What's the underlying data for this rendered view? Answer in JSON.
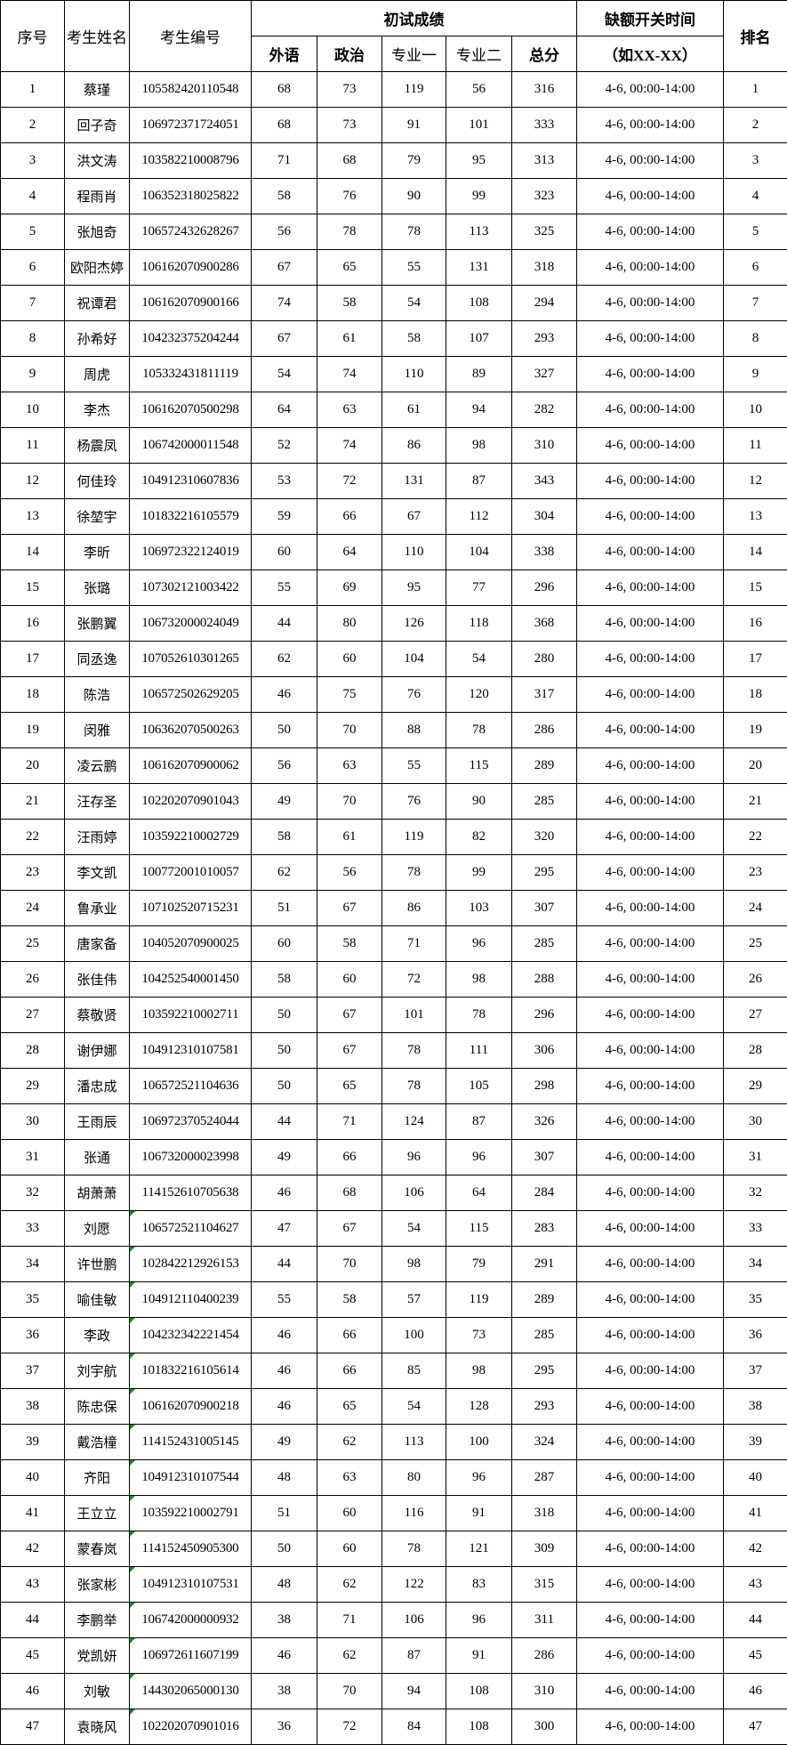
{
  "header": {
    "seq": "序号",
    "name": "考生姓名",
    "id": "考生编号",
    "scores_group": "初试成绩",
    "time_group": "缺额开关时间",
    "time_hint": "（如XX-XX）",
    "rank": "排名",
    "foreign": "外语",
    "politics": "政治",
    "major1": "专业一",
    "major2": "专业二",
    "total": "总分"
  },
  "flag_color": "#1a8a2a",
  "rows": [
    {
      "seq": "1",
      "name": "蔡瑾",
      "id": "105582420110548",
      "foreign": "68",
      "politics": "73",
      "major1": "119",
      "major2": "56",
      "total": "316",
      "time": "4-6, 00:00-14:00",
      "rank": "1",
      "flag": false
    },
    {
      "seq": "2",
      "name": "回子奇",
      "id": "106972371724051",
      "foreign": "68",
      "politics": "73",
      "major1": "91",
      "major2": "101",
      "total": "333",
      "time": "4-6, 00:00-14:00",
      "rank": "2",
      "flag": false
    },
    {
      "seq": "3",
      "name": "洪文涛",
      "id": "103582210008796",
      "foreign": "71",
      "politics": "68",
      "major1": "79",
      "major2": "95",
      "total": "313",
      "time": "4-6, 00:00-14:00",
      "rank": "3",
      "flag": false
    },
    {
      "seq": "4",
      "name": "程雨肖",
      "id": "106352318025822",
      "foreign": "58",
      "politics": "76",
      "major1": "90",
      "major2": "99",
      "total": "323",
      "time": "4-6, 00:00-14:00",
      "rank": "4",
      "flag": false
    },
    {
      "seq": "5",
      "name": "张旭奇",
      "id": "106572432628267",
      "foreign": "56",
      "politics": "78",
      "major1": "78",
      "major2": "113",
      "total": "325",
      "time": "4-6, 00:00-14:00",
      "rank": "5",
      "flag": false
    },
    {
      "seq": "6",
      "name": "欧阳杰婷",
      "id": "106162070900286",
      "foreign": "67",
      "politics": "65",
      "major1": "55",
      "major2": "131",
      "total": "318",
      "time": "4-6, 00:00-14:00",
      "rank": "6",
      "flag": false
    },
    {
      "seq": "7",
      "name": "祝谭君",
      "id": "106162070900166",
      "foreign": "74",
      "politics": "58",
      "major1": "54",
      "major2": "108",
      "total": "294",
      "time": "4-6, 00:00-14:00",
      "rank": "7",
      "flag": false
    },
    {
      "seq": "8",
      "name": "孙希好",
      "id": "104232375204244",
      "foreign": "67",
      "politics": "61",
      "major1": "58",
      "major2": "107",
      "total": "293",
      "time": "4-6, 00:00-14:00",
      "rank": "8",
      "flag": false
    },
    {
      "seq": "9",
      "name": "周虎",
      "id": "105332431811119",
      "foreign": "54",
      "politics": "74",
      "major1": "110",
      "major2": "89",
      "total": "327",
      "time": "4-6, 00:00-14:00",
      "rank": "9",
      "flag": false
    },
    {
      "seq": "10",
      "name": "李杰",
      "id": "106162070500298",
      "foreign": "64",
      "politics": "63",
      "major1": "61",
      "major2": "94",
      "total": "282",
      "time": "4-6, 00:00-14:00",
      "rank": "10",
      "flag": false
    },
    {
      "seq": "11",
      "name": "杨震凤",
      "id": "106742000011548",
      "foreign": "52",
      "politics": "74",
      "major1": "86",
      "major2": "98",
      "total": "310",
      "time": "4-6, 00:00-14:00",
      "rank": "11",
      "flag": false
    },
    {
      "seq": "12",
      "name": "何佳玲",
      "id": "104912310607836",
      "foreign": "53",
      "politics": "72",
      "major1": "131",
      "major2": "87",
      "total": "343",
      "time": "4-6, 00:00-14:00",
      "rank": "12",
      "flag": false
    },
    {
      "seq": "13",
      "name": "徐堃宇",
      "id": "101832216105579",
      "foreign": "59",
      "politics": "66",
      "major1": "67",
      "major2": "112",
      "total": "304",
      "time": "4-6, 00:00-14:00",
      "rank": "13",
      "flag": false
    },
    {
      "seq": "14",
      "name": "李昕",
      "id": "106972322124019",
      "foreign": "60",
      "politics": "64",
      "major1": "110",
      "major2": "104",
      "total": "338",
      "time": "4-6, 00:00-14:00",
      "rank": "14",
      "flag": false
    },
    {
      "seq": "15",
      "name": "张璐",
      "id": "107302121003422",
      "foreign": "55",
      "politics": "69",
      "major1": "95",
      "major2": "77",
      "total": "296",
      "time": "4-6, 00:00-14:00",
      "rank": "15",
      "flag": false
    },
    {
      "seq": "16",
      "name": "张鹏翼",
      "id": "106732000024049",
      "foreign": "44",
      "politics": "80",
      "major1": "126",
      "major2": "118",
      "total": "368",
      "time": "4-6, 00:00-14:00",
      "rank": "16",
      "flag": false
    },
    {
      "seq": "17",
      "name": "同丞逸",
      "id": "107052610301265",
      "foreign": "62",
      "politics": "60",
      "major1": "104",
      "major2": "54",
      "total": "280",
      "time": "4-6, 00:00-14:00",
      "rank": "17",
      "flag": false
    },
    {
      "seq": "18",
      "name": "陈浩",
      "id": "106572502629205",
      "foreign": "46",
      "politics": "75",
      "major1": "76",
      "major2": "120",
      "total": "317",
      "time": "4-6, 00:00-14:00",
      "rank": "18",
      "flag": false
    },
    {
      "seq": "19",
      "name": "闵雅",
      "id": "106362070500263",
      "foreign": "50",
      "politics": "70",
      "major1": "88",
      "major2": "78",
      "total": "286",
      "time": "4-6, 00:00-14:00",
      "rank": "19",
      "flag": false
    },
    {
      "seq": "20",
      "name": "凌云鹏",
      "id": "106162070900062",
      "foreign": "56",
      "politics": "63",
      "major1": "55",
      "major2": "115",
      "total": "289",
      "time": "4-6, 00:00-14:00",
      "rank": "20",
      "flag": false
    },
    {
      "seq": "21",
      "name": "汪存圣",
      "id": "102202070901043",
      "foreign": "49",
      "politics": "70",
      "major1": "76",
      "major2": "90",
      "total": "285",
      "time": "4-6, 00:00-14:00",
      "rank": "21",
      "flag": false
    },
    {
      "seq": "22",
      "name": "汪雨婷",
      "id": "103592210002729",
      "foreign": "58",
      "politics": "61",
      "major1": "119",
      "major2": "82",
      "total": "320",
      "time": "4-6, 00:00-14:00",
      "rank": "22",
      "flag": false
    },
    {
      "seq": "23",
      "name": "李文凯",
      "id": "100772001010057",
      "foreign": "62",
      "politics": "56",
      "major1": "78",
      "major2": "99",
      "total": "295",
      "time": "4-6, 00:00-14:00",
      "rank": "23",
      "flag": false
    },
    {
      "seq": "24",
      "name": "鲁承业",
      "id": "107102520715231",
      "foreign": "51",
      "politics": "67",
      "major1": "86",
      "major2": "103",
      "total": "307",
      "time": "4-6, 00:00-14:00",
      "rank": "24",
      "flag": false
    },
    {
      "seq": "25",
      "name": "唐家备",
      "id": "104052070900025",
      "foreign": "60",
      "politics": "58",
      "major1": "71",
      "major2": "96",
      "total": "285",
      "time": "4-6, 00:00-14:00",
      "rank": "25",
      "flag": false
    },
    {
      "seq": "26",
      "name": "张佳伟",
      "id": "104252540001450",
      "foreign": "58",
      "politics": "60",
      "major1": "72",
      "major2": "98",
      "total": "288",
      "time": "4-6, 00:00-14:00",
      "rank": "26",
      "flag": false
    },
    {
      "seq": "27",
      "name": "蔡敬贤",
      "id": "103592210002711",
      "foreign": "50",
      "politics": "67",
      "major1": "101",
      "major2": "78",
      "total": "296",
      "time": "4-6, 00:00-14:00",
      "rank": "27",
      "flag": false
    },
    {
      "seq": "28",
      "name": "谢伊娜",
      "id": "104912310107581",
      "foreign": "50",
      "politics": "67",
      "major1": "78",
      "major2": "111",
      "total": "306",
      "time": "4-6, 00:00-14:00",
      "rank": "28",
      "flag": false
    },
    {
      "seq": "29",
      "name": "潘忠成",
      "id": "106572521104636",
      "foreign": "50",
      "politics": "65",
      "major1": "78",
      "major2": "105",
      "total": "298",
      "time": "4-6, 00:00-14:00",
      "rank": "29",
      "flag": false
    },
    {
      "seq": "30",
      "name": "王雨辰",
      "id": "106972370524044",
      "foreign": "44",
      "politics": "71",
      "major1": "124",
      "major2": "87",
      "total": "326",
      "time": "4-6, 00:00-14:00",
      "rank": "30",
      "flag": false
    },
    {
      "seq": "31",
      "name": "张通",
      "id": "106732000023998",
      "foreign": "49",
      "politics": "66",
      "major1": "96",
      "major2": "96",
      "total": "307",
      "time": "4-6, 00:00-14:00",
      "rank": "31",
      "flag": false
    },
    {
      "seq": "32",
      "name": "胡萧萧",
      "id": "114152610705638",
      "foreign": "46",
      "politics": "68",
      "major1": "106",
      "major2": "64",
      "total": "284",
      "time": "4-6, 00:00-14:00",
      "rank": "32",
      "flag": false
    },
    {
      "seq": "33",
      "name": "刘愿",
      "id": "106572521104627",
      "foreign": "47",
      "politics": "67",
      "major1": "54",
      "major2": "115",
      "total": "283",
      "time": "4-6, 00:00-14:00",
      "rank": "33",
      "flag": true
    },
    {
      "seq": "34",
      "name": "许世鹏",
      "id": "102842212926153",
      "foreign": "44",
      "politics": "70",
      "major1": "98",
      "major2": "79",
      "total": "291",
      "time": "4-6, 00:00-14:00",
      "rank": "34",
      "flag": true
    },
    {
      "seq": "35",
      "name": "喻佳敏",
      "id": "104912110400239",
      "foreign": "55",
      "politics": "58",
      "major1": "57",
      "major2": "119",
      "total": "289",
      "time": "4-6, 00:00-14:00",
      "rank": "35",
      "flag": true
    },
    {
      "seq": "36",
      "name": "李政",
      "id": "104232342221454",
      "foreign": "46",
      "politics": "66",
      "major1": "100",
      "major2": "73",
      "total": "285",
      "time": "4-6, 00:00-14:00",
      "rank": "36",
      "flag": true
    },
    {
      "seq": "37",
      "name": "刘宇航",
      "id": "101832216105614",
      "foreign": "46",
      "politics": "66",
      "major1": "85",
      "major2": "98",
      "total": "295",
      "time": "4-6, 00:00-14:00",
      "rank": "37",
      "flag": true
    },
    {
      "seq": "38",
      "name": "陈忠保",
      "id": "106162070900218",
      "foreign": "46",
      "politics": "65",
      "major1": "54",
      "major2": "128",
      "total": "293",
      "time": "4-6, 00:00-14:00",
      "rank": "38",
      "flag": true
    },
    {
      "seq": "39",
      "name": "戴浩橦",
      "id": "114152431005145",
      "foreign": "49",
      "politics": "62",
      "major1": "113",
      "major2": "100",
      "total": "324",
      "time": "4-6, 00:00-14:00",
      "rank": "39",
      "flag": true
    },
    {
      "seq": "40",
      "name": "齐阳",
      "id": "104912310107544",
      "foreign": "48",
      "politics": "63",
      "major1": "80",
      "major2": "96",
      "total": "287",
      "time": "4-6, 00:00-14:00",
      "rank": "40",
      "flag": true
    },
    {
      "seq": "41",
      "name": "王立立",
      "id": "103592210002791",
      "foreign": "51",
      "politics": "60",
      "major1": "116",
      "major2": "91",
      "total": "318",
      "time": "4-6, 00:00-14:00",
      "rank": "41",
      "flag": true
    },
    {
      "seq": "42",
      "name": "蒙春岚",
      "id": "114152450905300",
      "foreign": "50",
      "politics": "60",
      "major1": "78",
      "major2": "121",
      "total": "309",
      "time": "4-6, 00:00-14:00",
      "rank": "42",
      "flag": true
    },
    {
      "seq": "43",
      "name": "张家彬",
      "id": "104912310107531",
      "foreign": "48",
      "politics": "62",
      "major1": "122",
      "major2": "83",
      "total": "315",
      "time": "4-6, 00:00-14:00",
      "rank": "43",
      "flag": true
    },
    {
      "seq": "44",
      "name": "李鹏举",
      "id": "106742000000932",
      "foreign": "38",
      "politics": "71",
      "major1": "106",
      "major2": "96",
      "total": "311",
      "time": "4-6, 00:00-14:00",
      "rank": "44",
      "flag": true
    },
    {
      "seq": "45",
      "name": "党凯妍",
      "id": "106972611607199",
      "foreign": "46",
      "politics": "62",
      "major1": "87",
      "major2": "91",
      "total": "286",
      "time": "4-6, 00:00-14:00",
      "rank": "45",
      "flag": true
    },
    {
      "seq": "46",
      "name": "刘敏",
      "id": "144302065000130",
      "foreign": "38",
      "politics": "70",
      "major1": "94",
      "major2": "108",
      "total": "310",
      "time": "4-6, 00:00-14:00",
      "rank": "46",
      "flag": true
    },
    {
      "seq": "47",
      "name": "袁晓风",
      "id": "102202070901016",
      "foreign": "36",
      "politics": "72",
      "major1": "84",
      "major2": "108",
      "total": "300",
      "time": "4-6, 00:00-14:00",
      "rank": "47",
      "flag": true
    }
  ]
}
